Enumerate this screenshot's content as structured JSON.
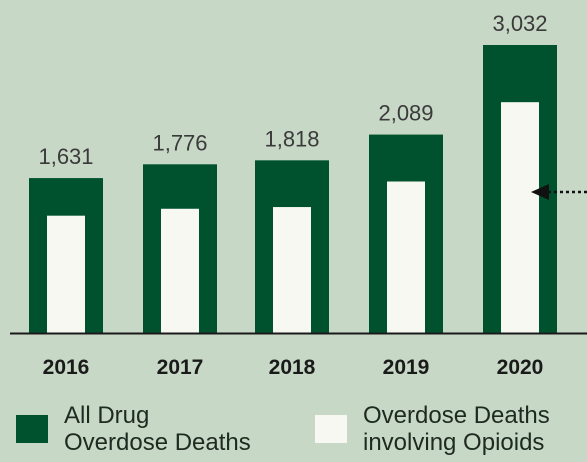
{
  "chart_data": {
    "type": "bar",
    "categories": [
      "2016",
      "2017",
      "2018",
      "2019",
      "2020"
    ],
    "series": [
      {
        "name": "All Drug Overdose Deaths",
        "values": [
          1631,
          1776,
          1818,
          2089,
          3032
        ],
        "value_labels": [
          "1,631",
          "1,776",
          "1,818",
          "2,089",
          "3,032"
        ],
        "color": "#00522e"
      },
      {
        "name": "Overdose Deaths involving Opioids",
        "values": [
          1235,
          1308,
          1326,
          1595,
          2430
        ],
        "color": "#f8f8f3"
      }
    ],
    "ylim": [
      0,
      3150
    ],
    "grid": false,
    "legend": "bottom",
    "annotation_arrow": "pointing to 2020 opioid bar from the right edge"
  },
  "legend": {
    "items": [
      {
        "label": "All Drug\nOverdose Deaths",
        "color": "#00522e"
      },
      {
        "label": "Overdose Deaths\ninvolving Opioids",
        "color": "#f8f8f3"
      }
    ]
  },
  "colors": {
    "background": "#c8d8c6",
    "axis": "#1a1a1a"
  }
}
